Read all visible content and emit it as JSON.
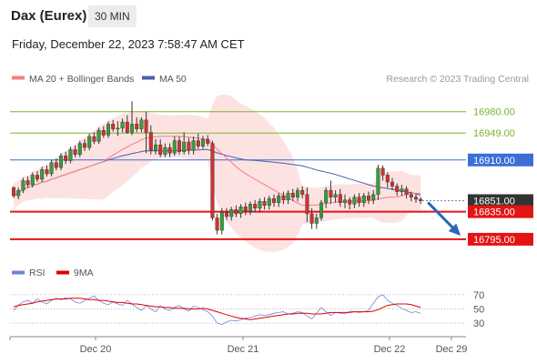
{
  "header": {
    "title": "Dax (Eurex)",
    "timeframe": "30 MIN",
    "datetime": "Friday, December 22, 2023 7:58:47 AM CET"
  },
  "legend": {
    "ma20": "MA 20 + Bollinger Bands",
    "ma50": "MA 50",
    "rsi": "RSI",
    "rsi_ma": "9MA",
    "credit": "Research © 2023 Trading Central"
  },
  "colors": {
    "bollinger_fill": "#fde2e2",
    "ma20": "#f08080",
    "ma50": "#4a5fa8",
    "rsi": "#6f86d6",
    "rsi_ma": "#e00000",
    "resistance": "#78b52c",
    "pivot": "#3a6fd8",
    "support": "#e31414",
    "last_price": "#333333",
    "candle_up": "#3a9b3a",
    "candle_down": "#d23030",
    "forecast_arrow": "#2a66b8"
  },
  "chart_data": {
    "type": "candlestick",
    "title": "Dax (Eurex)",
    "interval": "30 MIN",
    "ylim": [
      16783,
      17010
    ],
    "x_ticks": [
      "Dec 20",
      "Dec 21",
      "Dec 22",
      "Dec 29"
    ],
    "levels": [
      {
        "value": 16980.0,
        "label": "16980.00",
        "kind": "resistance"
      },
      {
        "value": 16949.0,
        "label": "16949.00",
        "kind": "resistance"
      },
      {
        "value": 16910.0,
        "label": "16910.00",
        "kind": "pivot"
      },
      {
        "value": 16851.0,
        "label": "16851.00",
        "kind": "last"
      },
      {
        "value": 16835.0,
        "label": "16835.00",
        "kind": "support"
      },
      {
        "value": 16795.0,
        "label": "16795.00",
        "kind": "support"
      }
    ],
    "candles": [
      [
        16870,
        16858,
        16872,
        16855
      ],
      [
        16858,
        16866,
        16870,
        16853
      ],
      [
        16866,
        16880,
        16884,
        16862
      ],
      [
        16880,
        16874,
        16886,
        16870
      ],
      [
        16874,
        16888,
        16892,
        16870
      ],
      [
        16888,
        16882,
        16894,
        16878
      ],
      [
        16882,
        16896,
        16900,
        16878
      ],
      [
        16896,
        16890,
        16902,
        16886
      ],
      [
        16890,
        16906,
        16910,
        16886
      ],
      [
        16906,
        16899,
        16912,
        16895
      ],
      [
        16899,
        16916,
        16920,
        16895
      ],
      [
        16916,
        16909,
        16922,
        16904
      ],
      [
        16909,
        16925,
        16929,
        16905
      ],
      [
        16925,
        16918,
        16931,
        16914
      ],
      [
        16918,
        16934,
        16938,
        16914
      ],
      [
        16934,
        16928,
        16940,
        16923
      ],
      [
        16928,
        16944,
        16948,
        16924
      ],
      [
        16944,
        16937,
        16950,
        16933
      ],
      [
        16937,
        16953,
        16957,
        16933
      ],
      [
        16953,
        16946,
        16959,
        16942
      ],
      [
        16946,
        16962,
        16966,
        16942
      ],
      [
        16962,
        16955,
        16968,
        16951
      ],
      [
        16955,
        16956,
        16966,
        16945
      ],
      [
        16956,
        16965,
        16970,
        16950
      ],
      [
        16965,
        16950,
        16975,
        16948
      ],
      [
        16950,
        16962,
        16995,
        16946
      ],
      [
        16962,
        16955,
        16972,
        16950
      ],
      [
        16955,
        16968,
        16972,
        16950
      ],
      [
        16968,
        16950,
        16980,
        16920
      ],
      [
        16950,
        16924,
        16960,
        16918
      ],
      [
        16924,
        16932,
        16940,
        16918
      ],
      [
        16932,
        16918,
        16940,
        16914
      ],
      [
        16918,
        16928,
        16934,
        16914
      ],
      [
        16928,
        16920,
        16934,
        16914
      ],
      [
        16920,
        16938,
        16944,
        16916
      ],
      [
        16938,
        16922,
        16944,
        16918
      ],
      [
        16922,
        16936,
        16950,
        16918
      ],
      [
        16936,
        16924,
        16942,
        16918
      ],
      [
        16924,
        16938,
        16944,
        16918
      ],
      [
        16938,
        16930,
        16948,
        16926
      ],
      [
        16930,
        16940,
        16945,
        16926
      ],
      [
        16940,
        16934,
        16946,
        16930
      ],
      [
        16934,
        16826,
        16938,
        16822
      ],
      [
        16826,
        16808,
        16832,
        16802
      ],
      [
        16808,
        16834,
        16840,
        16802
      ],
      [
        16834,
        16828,
        16840,
        16823
      ],
      [
        16828,
        16838,
        16842,
        16822
      ],
      [
        16838,
        16832,
        16844,
        16827
      ],
      [
        16832,
        16842,
        16846,
        16826
      ],
      [
        16842,
        16836,
        16848,
        16830
      ],
      [
        16836,
        16846,
        16850,
        16830
      ],
      [
        16846,
        16840,
        16852,
        16834
      ],
      [
        16840,
        16850,
        16854,
        16834
      ],
      [
        16850,
        16844,
        16856,
        16838
      ],
      [
        16844,
        16854,
        16858,
        16838
      ],
      [
        16854,
        16848,
        16860,
        16842
      ],
      [
        16848,
        16858,
        16862,
        16842
      ],
      [
        16858,
        16852,
        16864,
        16846
      ],
      [
        16852,
        16862,
        16866,
        16846
      ],
      [
        16862,
        16856,
        16868,
        16850
      ],
      [
        16856,
        16866,
        16870,
        16850
      ],
      [
        16866,
        16860,
        16872,
        16854
      ],
      [
        16860,
        16832,
        16870,
        16820
      ],
      [
        16832,
        16818,
        16840,
        16810
      ],
      [
        16818,
        16826,
        16832,
        16810
      ],
      [
        16826,
        16848,
        16852,
        16822
      ],
      [
        16848,
        16866,
        16870,
        16840
      ],
      [
        16866,
        16856,
        16880,
        16846
      ],
      [
        16856,
        16860,
        16866,
        16848
      ],
      [
        16860,
        16848,
        16868,
        16842
      ],
      [
        16848,
        16852,
        16860,
        16840
      ],
      [
        16852,
        16846,
        16856,
        16838
      ],
      [
        16846,
        16856,
        16860,
        16840
      ],
      [
        16856,
        16848,
        16862,
        16842
      ],
      [
        16848,
        16858,
        16862,
        16842
      ],
      [
        16858,
        16852,
        16864,
        16846
      ],
      [
        16852,
        16860,
        16866,
        16846
      ],
      [
        16860,
        16898,
        16903,
        16852
      ],
      [
        16898,
        16888,
        16902,
        16880
      ],
      [
        16888,
        16878,
        16892,
        16870
      ],
      [
        16878,
        16872,
        16884,
        16866
      ],
      [
        16872,
        16864,
        16876,
        16858
      ],
      [
        16864,
        16868,
        16874,
        16858
      ],
      [
        16868,
        16860,
        16872,
        16854
      ],
      [
        16860,
        16856,
        16864,
        16850
      ],
      [
        16856,
        16853,
        16860,
        16848
      ],
      [
        16853,
        16851,
        16856,
        16846
      ]
    ],
    "rsi_axis": {
      "ticks": [
        70,
        50,
        30
      ],
      "ylim": [
        20,
        80
      ]
    },
    "rsi": [
      48,
      55,
      60,
      62,
      58,
      64,
      60,
      57,
      62,
      65,
      63,
      66,
      64,
      60,
      58,
      62,
      65,
      68,
      62,
      58,
      56,
      60,
      57,
      55,
      62,
      57,
      52,
      48,
      55,
      50,
      46,
      54,
      50,
      48,
      52,
      55,
      50,
      47,
      54,
      52,
      49,
      46,
      40,
      30,
      28,
      32,
      34,
      33,
      35,
      37,
      38,
      40,
      42,
      41,
      42,
      44,
      45,
      46,
      43,
      44,
      46,
      45,
      40,
      36,
      44,
      52,
      46,
      41,
      45,
      44,
      43,
      47,
      46,
      45,
      46,
      48,
      58,
      67,
      70,
      62,
      58,
      55,
      51,
      48,
      45,
      46,
      44
    ],
    "rsi_ma": [
      53,
      55,
      56,
      57,
      58,
      60,
      61,
      62,
      63,
      64,
      64,
      64,
      65,
      65,
      65,
      64,
      63,
      63,
      62,
      62,
      61,
      60,
      59,
      59,
      58,
      57,
      57,
      56,
      55,
      54,
      53,
      53,
      52,
      52,
      51,
      51,
      51,
      50,
      50,
      50,
      51,
      50,
      48,
      46,
      44,
      42,
      40,
      38,
      37,
      36,
      35,
      36,
      37,
      38,
      39,
      40,
      41,
      42,
      43,
      43,
      44,
      44,
      44,
      43,
      43,
      43,
      44,
      45,
      45,
      45,
      45,
      45,
      46,
      46,
      46,
      46,
      47,
      49,
      52,
      55,
      56,
      57,
      57,
      57,
      56,
      54,
      52
    ]
  }
}
